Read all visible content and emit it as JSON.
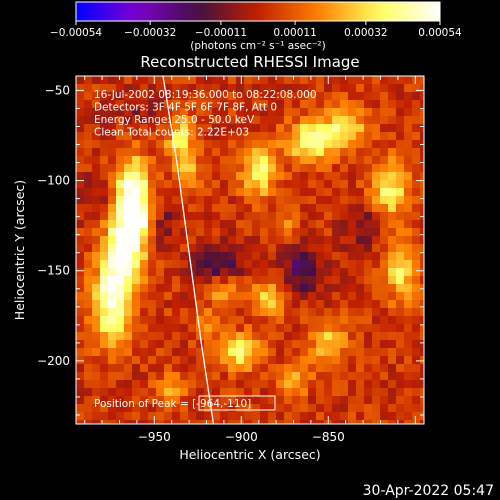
{
  "chart_data": {
    "type": "heatmap",
    "title": "Reconstructed RHESSI Image",
    "xlabel": "Heliocentric X (arcsec)",
    "ylabel": "Heliocentric Y (arcsec)",
    "xlim": [
      -995,
      -795
    ],
    "ylim": [
      -235,
      -42
    ],
    "xticks": [
      -950,
      -900,
      -850
    ],
    "xtick_labels": [
      "−950",
      "−900",
      "−850"
    ],
    "yticks": [
      -50,
      -100,
      -150,
      -200
    ],
    "ytick_labels": [
      "−50",
      "−100",
      "−150",
      "−200"
    ],
    "colorbar": {
      "range": [
        -0.00054,
        0.00054
      ],
      "ticks": [
        -0.00054,
        -0.00032,
        -0.00011,
        0.00011,
        0.00032,
        0.00054
      ],
      "tick_labels": [
        "−0.00054",
        "−0.00032",
        "−0.00011",
        "0.00011",
        "0.00032",
        "0.00054"
      ],
      "unit_label": "(photons cm⁻² s⁻¹ asec⁻²)",
      "colormap": [
        "#0000ff",
        "#8000d0",
        "#401040",
        "#c02000",
        "#ff8000",
        "#ffff60",
        "#ffffff"
      ]
    },
    "annotations": [
      "16-Jul-2002 08:19:36.000 to 08:22:08.000",
      "Detectors: 3F 4F 5F 6F 7F 8F, Att 0",
      "Energy Range: 25.0 - 50.0 keV",
      "Clean     Total counts: 2.22E+03"
    ],
    "peak_text": "Position of Peak = [-964,-110]",
    "limb_points": [
      [
        -945,
        -42
      ],
      [
        -937,
        -90
      ],
      [
        -930,
        -140
      ],
      [
        -923,
        -190
      ],
      [
        -916,
        -235
      ]
    ],
    "features": [
      {
        "x": -962,
        "y": -108,
        "sx": 7,
        "sy": 14,
        "amp": 1.0
      },
      {
        "x": -967,
        "y": -138,
        "sx": 8,
        "sy": 14,
        "amp": 0.95
      },
      {
        "x": -974,
        "y": -168,
        "sx": 8,
        "sy": 16,
        "amp": 0.85
      },
      {
        "x": -958,
        "y": -122,
        "sx": 5,
        "sy": 6,
        "amp": 0.4
      },
      {
        "x": -935,
        "y": -78,
        "sx": 6,
        "sy": 10,
        "amp": 0.55
      },
      {
        "x": -930,
        "y": -95,
        "sx": 5,
        "sy": 6,
        "amp": 0.4
      },
      {
        "x": -890,
        "y": -95,
        "sx": 7,
        "sy": 10,
        "amp": 0.65
      },
      {
        "x": -860,
        "y": -78,
        "sx": 10,
        "sy": 8,
        "amp": 0.7
      },
      {
        "x": -840,
        "y": -70,
        "sx": 8,
        "sy": 8,
        "amp": 0.6
      },
      {
        "x": -815,
        "y": -105,
        "sx": 8,
        "sy": 12,
        "amp": 0.6
      },
      {
        "x": -808,
        "y": -150,
        "sx": 7,
        "sy": 12,
        "amp": 0.55
      },
      {
        "x": -910,
        "y": -160,
        "sx": 8,
        "sy": 7,
        "amp": 0.45
      },
      {
        "x": -885,
        "y": -165,
        "sx": 7,
        "sy": 7,
        "amp": 0.55
      },
      {
        "x": -900,
        "y": -195,
        "sx": 8,
        "sy": 7,
        "amp": 0.6
      },
      {
        "x": -870,
        "y": -210,
        "sx": 7,
        "sy": 6,
        "amp": 0.45
      },
      {
        "x": -850,
        "y": -190,
        "sx": 8,
        "sy": 8,
        "amp": 0.5
      },
      {
        "x": -940,
        "y": -215,
        "sx": 6,
        "sy": 6,
        "amp": 0.35
      },
      {
        "x": -920,
        "y": -180,
        "sx": 6,
        "sy": 5,
        "amp": 0.35
      },
      {
        "x": -875,
        "y": -125,
        "sx": 5,
        "sy": 5,
        "amp": 0.3
      },
      {
        "x": -912,
        "y": -148,
        "sx": 10,
        "sy": 8,
        "amp": -0.5
      },
      {
        "x": -865,
        "y": -150,
        "sx": 8,
        "sy": 10,
        "amp": -0.45
      },
      {
        "x": -945,
        "y": -125,
        "sx": 6,
        "sy": 9,
        "amp": -0.25
      },
      {
        "x": -830,
        "y": -125,
        "sx": 7,
        "sy": 10,
        "amp": -0.3
      },
      {
        "x": -960,
        "y": -60,
        "sx": 12,
        "sy": 8,
        "amp": -0.15
      },
      {
        "x": -985,
        "y": -110,
        "sx": 6,
        "sy": 8,
        "amp": -0.2
      }
    ]
  },
  "footer": {
    "date": "30-Apr-2022 05:47"
  }
}
